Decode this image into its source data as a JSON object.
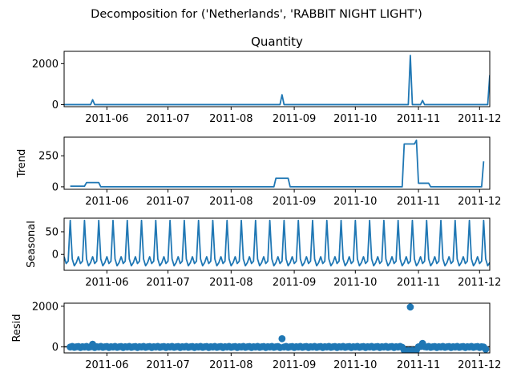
{
  "suptitle": "Decomposition for ('Netherlands', 'RABBIT NIGHT LIGHT')",
  "colors": {
    "series": "#1f77b4",
    "zero_line": "#000000"
  },
  "chart_data": [
    {
      "type": "line",
      "title": "Quantity",
      "ylabel": "",
      "x_range": [
        "2011-05-11",
        "2011-12-06"
      ],
      "ylim": [
        -100,
        2600
      ],
      "y_ticks": [
        {
          "v": 0,
          "label": "0"
        },
        {
          "v": 2000,
          "label": "2000"
        }
      ],
      "x_ticks": [
        {
          "date": "2011-06-01",
          "label": "2011-06"
        },
        {
          "date": "2011-07-01",
          "label": "2011-07"
        },
        {
          "date": "2011-08-01",
          "label": "2011-08"
        },
        {
          "date": "2011-09-01",
          "label": "2011-09"
        },
        {
          "date": "2011-10-01",
          "label": "2011-10"
        },
        {
          "date": "2011-11-01",
          "label": "2011-11"
        },
        {
          "date": "2011-12-01",
          "label": "2011-12"
        }
      ],
      "points": [
        [
          "2011-05-11",
          0
        ],
        [
          "2011-05-24",
          0
        ],
        [
          "2011-05-25",
          240
        ],
        [
          "2011-05-26",
          0
        ],
        [
          "2011-08-25",
          0
        ],
        [
          "2011-08-26",
          480
        ],
        [
          "2011-08-27",
          0
        ],
        [
          "2011-10-27",
          0
        ],
        [
          "2011-10-28",
          2400
        ],
        [
          "2011-10-29",
          0
        ],
        [
          "2011-11-02",
          0
        ],
        [
          "2011-11-03",
          200
        ],
        [
          "2011-11-04",
          0
        ],
        [
          "2011-12-05",
          0
        ],
        [
          "2011-12-06",
          1440
        ]
      ]
    },
    {
      "type": "line",
      "title": "",
      "ylabel": "Trend",
      "x_range": [
        "2011-05-11",
        "2011-12-06"
      ],
      "ylim": [
        -20,
        400
      ],
      "y_ticks": [
        {
          "v": 0,
          "label": "0"
        },
        {
          "v": 250,
          "label": "250"
        }
      ],
      "x_ticks": [
        {
          "date": "2011-06-01",
          "label": "2011-06"
        },
        {
          "date": "2011-07-01",
          "label": "2011-07"
        },
        {
          "date": "2011-08-01",
          "label": "2011-08"
        },
        {
          "date": "2011-09-01",
          "label": "2011-09"
        },
        {
          "date": "2011-10-01",
          "label": "2011-10"
        },
        {
          "date": "2011-11-01",
          "label": "2011-11"
        },
        {
          "date": "2011-12-01",
          "label": "2011-12"
        }
      ],
      "points": [
        [
          "2011-05-14",
          5
        ],
        [
          "2011-05-21",
          5
        ],
        [
          "2011-05-22",
          34
        ],
        [
          "2011-05-28",
          34
        ],
        [
          "2011-05-29",
          0
        ],
        [
          "2011-08-22",
          0
        ],
        [
          "2011-08-23",
          69
        ],
        [
          "2011-08-29",
          69
        ],
        [
          "2011-08-30",
          0
        ],
        [
          "2011-10-24",
          0
        ],
        [
          "2011-10-25",
          345
        ],
        [
          "2011-10-30",
          345
        ],
        [
          "2011-10-31",
          375
        ],
        [
          "2011-11-01",
          29
        ],
        [
          "2011-11-06",
          29
        ],
        [
          "2011-11-07",
          0
        ],
        [
          "2011-12-02",
          0
        ],
        [
          "2011-12-03",
          205
        ]
      ]
    },
    {
      "type": "line",
      "title": "",
      "ylabel": "Seasonal",
      "x_range": [
        "2011-05-11",
        "2011-12-06"
      ],
      "ylim": [
        -35,
        80
      ],
      "y_ticks": [
        {
          "v": 0,
          "label": "0"
        },
        {
          "v": 50,
          "label": "50"
        }
      ],
      "x_ticks": [
        {
          "date": "2011-06-01",
          "label": "2011-06"
        },
        {
          "date": "2011-07-01",
          "label": "2011-07"
        },
        {
          "date": "2011-08-01",
          "label": "2011-08"
        },
        {
          "date": "2011-09-01",
          "label": "2011-09"
        },
        {
          "date": "2011-10-01",
          "label": "2011-10"
        },
        {
          "date": "2011-11-01",
          "label": "2011-11"
        },
        {
          "date": "2011-12-01",
          "label": "2011-12"
        }
      ],
      "period_start": "2011-05-11",
      "period_days": 7,
      "pattern": [
        -5,
        -20,
        -15,
        75,
        -10,
        -25,
        -18
      ]
    },
    {
      "type": "scatter",
      "title": "",
      "ylabel": "Resid",
      "x_range": [
        "2011-05-11",
        "2011-12-06"
      ],
      "ylim": [
        -300,
        2150
      ],
      "y_ticks": [
        {
          "v": 0,
          "label": "0"
        },
        {
          "v": 2000,
          "label": "2000"
        }
      ],
      "x_ticks": [
        {
          "date": "2011-06-01",
          "label": "2011-06"
        },
        {
          "date": "2011-07-01",
          "label": "2011-07"
        },
        {
          "date": "2011-08-01",
          "label": "2011-08"
        },
        {
          "date": "2011-09-01",
          "label": "2011-09"
        },
        {
          "date": "2011-10-01",
          "label": "2011-10"
        },
        {
          "date": "2011-11-01",
          "label": "2011-11"
        },
        {
          "date": "2011-12-01",
          "label": "2011-12"
        }
      ],
      "zero_line": true,
      "baseline": {
        "start": "2011-05-14",
        "end": "2011-12-03",
        "step_days": 1,
        "pattern": [
          -10,
          20,
          -25,
          0,
          15,
          -35,
          5
        ]
      },
      "points": [
        [
          "2011-05-25",
          130
        ],
        [
          "2011-08-26",
          400
        ],
        [
          "2011-10-25",
          -170
        ],
        [
          "2011-10-26",
          -200
        ],
        [
          "2011-10-27",
          -180
        ],
        [
          "2011-10-28",
          1960
        ],
        [
          "2011-10-29",
          -170
        ],
        [
          "2011-10-30",
          -190
        ],
        [
          "2011-10-31",
          -160
        ],
        [
          "2011-11-03",
          170
        ],
        [
          "2011-12-04",
          -120
        ]
      ]
    }
  ]
}
